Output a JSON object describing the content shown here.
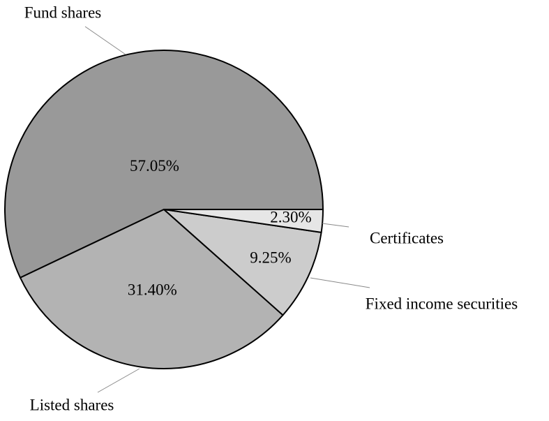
{
  "chart_data": {
    "type": "pie",
    "categories": [
      "Fund shares",
      "Listed shares",
      "Fixed income securities",
      "Certificates"
    ],
    "values": [
      57.05,
      31.4,
      9.25,
      2.3
    ],
    "value_labels": [
      "57.05%",
      "31.40%",
      "9.25%",
      "2.30%"
    ],
    "colors": [
      "#999999",
      "#b3b3b3",
      "#cccccc",
      "#e6e6e6"
    ]
  }
}
